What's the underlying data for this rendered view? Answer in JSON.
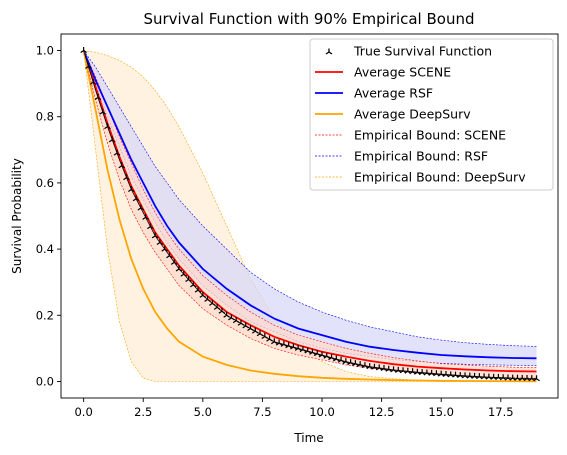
{
  "chart_data": {
    "type": "line",
    "title": "Survival Function with 90% Empirical Bound",
    "xlabel": "Time",
    "ylabel": "Survival Probability",
    "xlim": [
      -0.95,
      19.9
    ],
    "ylim": [
      -0.05,
      1.05
    ],
    "xticks": [
      0.0,
      2.5,
      5.0,
      7.5,
      10.0,
      12.5,
      15.0,
      17.5
    ],
    "xtick_labels": [
      "0.0",
      "2.5",
      "5.0",
      "7.5",
      "10.0",
      "12.5",
      "15.0",
      "17.5"
    ],
    "yticks": [
      0.0,
      0.2,
      0.4,
      0.6,
      0.8,
      1.0
    ],
    "ytick_labels": [
      "0.0",
      "0.2",
      "0.4",
      "0.6",
      "0.8",
      "1.0"
    ],
    "grid": false,
    "legend_position": "top-right",
    "x": [
      0.0,
      0.5,
      1.0,
      1.5,
      2.0,
      2.5,
      3.0,
      3.5,
      4.0,
      5.0,
      6.0,
      7.0,
      8.0,
      9.0,
      10.0,
      11.0,
      12.0,
      13.0,
      14.0,
      15.0,
      16.0,
      17.0,
      18.0,
      19.0
    ],
    "series": [
      {
        "name": "True Survival Function",
        "color": "#000000",
        "style": "marker",
        "values": [
          1.0,
          0.88,
          0.77,
          0.67,
          0.58,
          0.51,
          0.44,
          0.39,
          0.34,
          0.26,
          0.2,
          0.16,
          0.12,
          0.1,
          0.08,
          0.06,
          0.045,
          0.035,
          0.028,
          0.022,
          0.017,
          0.013,
          0.01,
          0.008
        ]
      },
      {
        "name": "Average SCENE",
        "color": "#ff0000",
        "style": "line",
        "values": [
          1.0,
          0.89,
          0.78,
          0.68,
          0.59,
          0.52,
          0.45,
          0.4,
          0.35,
          0.27,
          0.21,
          0.17,
          0.135,
          0.11,
          0.09,
          0.075,
          0.062,
          0.052,
          0.045,
          0.04,
          0.036,
          0.033,
          0.031,
          0.03
        ]
      },
      {
        "name": "Average RSF",
        "color": "#0000ff",
        "style": "line",
        "values": [
          1.0,
          0.91,
          0.83,
          0.75,
          0.67,
          0.6,
          0.53,
          0.47,
          0.42,
          0.34,
          0.28,
          0.23,
          0.19,
          0.16,
          0.14,
          0.12,
          0.105,
          0.095,
          0.087,
          0.08,
          0.076,
          0.073,
          0.071,
          0.07
        ]
      },
      {
        "name": "Average DeepSurv",
        "color": "#ffa500",
        "style": "line",
        "values": [
          1.0,
          0.82,
          0.64,
          0.49,
          0.37,
          0.28,
          0.21,
          0.16,
          0.12,
          0.075,
          0.05,
          0.033,
          0.023,
          0.016,
          0.011,
          0.008,
          0.006,
          0.004,
          0.003,
          0.002,
          0.0015,
          0.001,
          0.0008,
          0.0006
        ]
      },
      {
        "name": "Empirical Bound: SCENE",
        "color": "#ff0000",
        "style": "band",
        "fill": "#ffd9cc",
        "lower": [
          1.0,
          0.85,
          0.72,
          0.61,
          0.52,
          0.45,
          0.39,
          0.34,
          0.29,
          0.22,
          0.17,
          0.13,
          0.1,
          0.08,
          0.065,
          0.05,
          0.04,
          0.032,
          0.026,
          0.02,
          0.016,
          0.013,
          0.011,
          0.01
        ],
        "upper": [
          1.0,
          0.92,
          0.83,
          0.74,
          0.66,
          0.58,
          0.51,
          0.45,
          0.4,
          0.32,
          0.26,
          0.21,
          0.17,
          0.14,
          0.12,
          0.1,
          0.085,
          0.072,
          0.062,
          0.054,
          0.05,
          0.046,
          0.043,
          0.042
        ]
      },
      {
        "name": "Empirical Bound: RSF",
        "color": "#0000ff",
        "style": "band",
        "fill": "#d8d8f8",
        "lower": [
          1.0,
          0.9,
          0.8,
          0.71,
          0.62,
          0.55,
          0.48,
          0.42,
          0.37,
          0.29,
          0.23,
          0.18,
          0.15,
          0.12,
          0.1,
          0.085,
          0.075,
          0.066,
          0.06,
          0.055,
          0.052,
          0.05,
          0.049,
          0.048
        ],
        "upper": [
          1.0,
          0.95,
          0.89,
          0.83,
          0.77,
          0.71,
          0.65,
          0.6,
          0.55,
          0.47,
          0.4,
          0.33,
          0.28,
          0.24,
          0.21,
          0.185,
          0.165,
          0.15,
          0.135,
          0.125,
          0.117,
          0.112,
          0.108,
          0.106
        ]
      },
      {
        "name": "Empirical Bound: DeepSurv",
        "color": "#ffa500",
        "style": "band",
        "fill": "#ffedd5",
        "lower": [
          1.0,
          0.7,
          0.4,
          0.18,
          0.06,
          0.01,
          0.0,
          0.0,
          0.0,
          0.0,
          0.0,
          0.0,
          0.0,
          0.0,
          0.0,
          0.0,
          0.0,
          0.0,
          0.0,
          0.0,
          0.0,
          0.0,
          0.0,
          0.0
        ],
        "upper": [
          1.0,
          0.995,
          0.985,
          0.97,
          0.95,
          0.92,
          0.88,
          0.83,
          0.77,
          0.63,
          0.47,
          0.31,
          0.19,
          0.11,
          0.06,
          0.03,
          0.015,
          0.008,
          0.004,
          0.002,
          0.001,
          0.0,
          0.0,
          0.0
        ]
      }
    ]
  }
}
